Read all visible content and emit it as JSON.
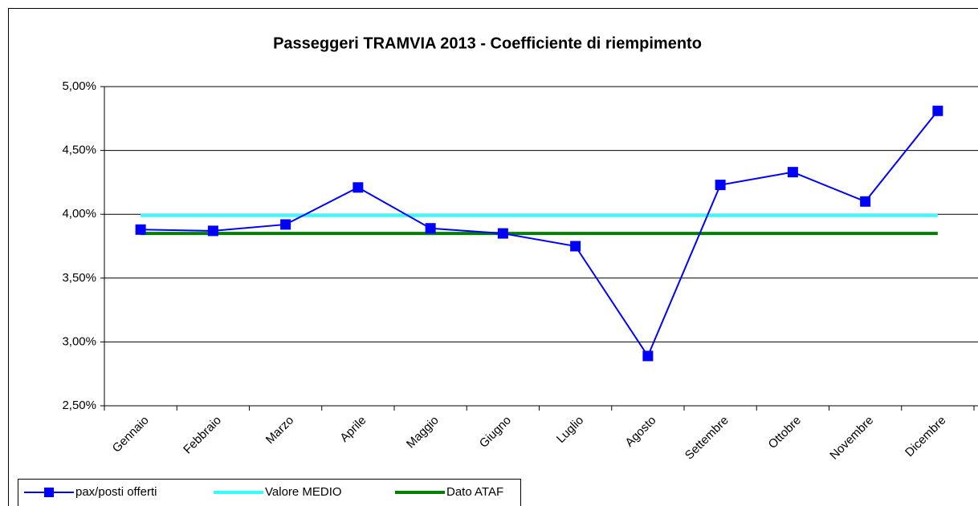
{
  "chart_data": {
    "type": "line",
    "title": "Passeggeri TRAMVIA 2013 - Coefficiente di riempimento",
    "categories": [
      "Gennaio",
      "Febbraio",
      "Marzo",
      "Aprile",
      "Maggio",
      "Giugno",
      "Luglio",
      "Agosto",
      "Settembre",
      "Ottobre",
      "Novembre",
      "Dicembre"
    ],
    "series": [
      {
        "name": "pax/posti offerti",
        "color": "#0000ff",
        "marker": "square",
        "values": [
          3.88,
          3.87,
          3.92,
          4.21,
          3.89,
          3.85,
          3.75,
          2.89,
          4.23,
          4.33,
          4.1,
          4.81
        ]
      },
      {
        "name": "Valore MEDIO",
        "color": "#33ffff",
        "values": [
          3.99,
          3.99,
          3.99,
          3.99,
          3.99,
          3.99,
          3.99,
          3.99,
          3.99,
          3.99,
          3.99,
          3.99
        ]
      },
      {
        "name": "Dato ATAF",
        "color": "#008000",
        "values": [
          3.85,
          3.85,
          3.85,
          3.85,
          3.85,
          3.85,
          3.85,
          3.85,
          3.85,
          3.85,
          3.85,
          3.85
        ]
      }
    ],
    "ylim": [
      2.5,
      5.0
    ],
    "yticks": [
      {
        "value": 2.5,
        "label": "2,50%"
      },
      {
        "value": 3.0,
        "label": "3,00%"
      },
      {
        "value": 3.5,
        "label": "3,50%"
      },
      {
        "value": 4.0,
        "label": "4,00%"
      },
      {
        "value": 4.5,
        "label": "4,50%"
      },
      {
        "value": 5.0,
        "label": "5,00%"
      }
    ],
    "grid": true,
    "legend": "bottom-left"
  }
}
